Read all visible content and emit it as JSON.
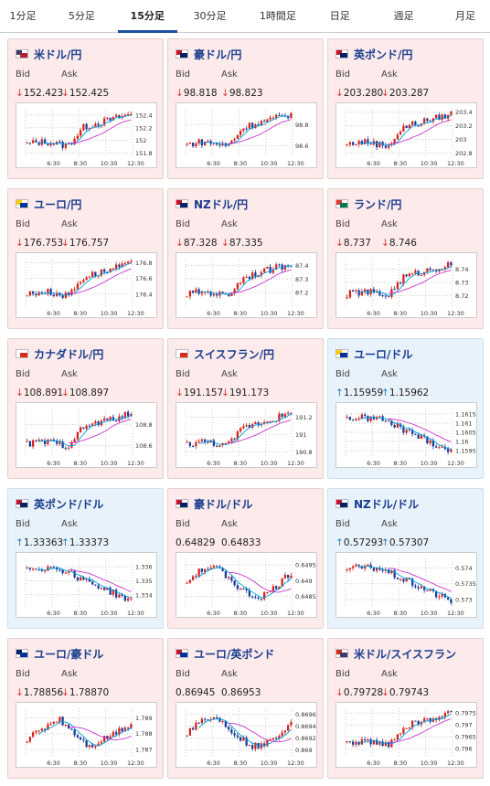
{
  "tabs": [
    {
      "label": "1分足",
      "active": false
    },
    {
      "label": "5分足",
      "active": false
    },
    {
      "label": "15分足",
      "active": true
    },
    {
      "label": "30分足",
      "active": false
    },
    {
      "label": "1時間足",
      "active": false
    },
    {
      "label": "日足",
      "active": false
    },
    {
      "label": "週足",
      "active": false
    },
    {
      "label": "月足",
      "active": false
    }
  ],
  "colors": {
    "accent": "#1a4fa0",
    "down_bg": "#fdeaea",
    "up_bg": "#e8f2fb",
    "rise": "#d9221a",
    "fall": "#1a3c9a",
    "ma_short": "#00a0e0",
    "ma_long": "#cc33cc"
  },
  "cards": [
    {
      "pair": "米ドル/円",
      "dir": "down",
      "bid": "152.423",
      "ask": "152.425",
      "flag": "us-flag-icon",
      "chart_data": {
        "type": "candlestick",
        "x_ticks": [
          "6:30",
          "8:30",
          "10:30",
          "12:30"
        ],
        "y_ticks": [
          "152.4",
          "152.2",
          "152",
          "151.8"
        ],
        "y_range": [
          151.75,
          152.5
        ],
        "shape": "rise"
      }
    },
    {
      "pair": "豪ドル/円",
      "dir": "down",
      "bid": "98.818",
      "ask": "98.823",
      "flag": "au-flag-icon",
      "chart_data": {
        "type": "candlestick",
        "x_ticks": [
          "6:30",
          "8:30",
          "10:30",
          "12:30"
        ],
        "y_ticks": [
          "98.8",
          "98.6"
        ],
        "y_range": [
          98.5,
          98.95
        ],
        "shape": "rise"
      }
    },
    {
      "pair": "英ポンド/円",
      "dir": "down",
      "bid": "203.280",
      "ask": "203.287",
      "flag": "uk-flag-icon",
      "chart_data": {
        "type": "candlestick",
        "x_ticks": [
          "6:30",
          "8:30",
          "10:30",
          "12:30"
        ],
        "y_ticks": [
          "203.4",
          "203.2",
          "203",
          "202.8"
        ],
        "y_range": [
          202.75,
          203.45
        ],
        "shape": "rise"
      }
    },
    {
      "pair": "ユーロ/円",
      "dir": "down",
      "bid": "176.753",
      "ask": "176.757",
      "flag": "eu-flag-icon",
      "chart_data": {
        "type": "candlestick",
        "x_ticks": [
          "6:30",
          "8:30",
          "10:30",
          "12:30"
        ],
        "y_ticks": [
          "176.8",
          "176.6",
          "176.4"
        ],
        "y_range": [
          176.25,
          176.85
        ],
        "shape": "rise"
      }
    },
    {
      "pair": "NZドル/円",
      "dir": "down",
      "bid": "87.328",
      "ask": "87.335",
      "flag": "nz-flag-icon",
      "chart_data": {
        "type": "candlestick",
        "x_ticks": [
          "6:30",
          "8:30",
          "10:30",
          "12:30"
        ],
        "y_ticks": [
          "87.4",
          "87.3",
          "87.2"
        ],
        "y_range": [
          87.1,
          87.45
        ],
        "shape": "rise"
      }
    },
    {
      "pair": "ランド/円",
      "dir": "down",
      "bid": "8.737",
      "ask": "8.746",
      "flag": "za-flag-icon",
      "chart_data": {
        "type": "candlestick",
        "x_ticks": [
          "6:30",
          "8:30",
          "10:30",
          "12:30"
        ],
        "y_ticks": [
          "8.74",
          "8.73",
          "8.72"
        ],
        "y_range": [
          8.712,
          8.748
        ],
        "shape": "rise"
      }
    },
    {
      "pair": "カナダドル/円",
      "dir": "down",
      "bid": "108.891",
      "ask": "108.897",
      "flag": "ca-flag-icon",
      "chart_data": {
        "type": "candlestick",
        "x_ticks": [
          "6:30",
          "8:30",
          "10:30",
          "12:30"
        ],
        "y_ticks": [
          "108.8",
          "108.6"
        ],
        "y_range": [
          108.5,
          108.95
        ],
        "shape": "rise"
      }
    },
    {
      "pair": "スイスフラン/円",
      "dir": "down",
      "bid": "191.157",
      "ask": "191.173",
      "flag": "ch-flag-icon",
      "chart_data": {
        "type": "candlestick",
        "x_ticks": [
          "6:30",
          "8:30",
          "10:30",
          "12:30"
        ],
        "y_ticks": [
          "191.2",
          "191",
          "190.8"
        ],
        "y_range": [
          190.75,
          191.3
        ],
        "shape": "rise"
      }
    },
    {
      "pair": "ユーロ/ドル",
      "dir": "up",
      "bid": "1.15959",
      "ask": "1.15962",
      "flag": "eu-flag-icon",
      "chart_data": {
        "type": "candlestick",
        "x_ticks": [
          "6:30",
          "8:30",
          "10:30",
          "12:30"
        ],
        "y_ticks": [
          "1.1615",
          "1.161",
          "1.1605",
          "1.16",
          "1.1595"
        ],
        "y_range": [
          1.1592,
          1.1618
        ],
        "shape": "fall"
      }
    },
    {
      "pair": "英ポンド/ドル",
      "dir": "up",
      "bid": "1.33363",
      "ask": "1.33373",
      "flag": "uk-flag-icon",
      "chart_data": {
        "type": "candlestick",
        "x_ticks": [
          "6:30",
          "8:30",
          "10:30",
          "12:30"
        ],
        "y_ticks": [
          "1.336",
          "1.335",
          "1.334"
        ],
        "y_range": [
          1.3332,
          1.3366
        ],
        "shape": "fall"
      }
    },
    {
      "pair": "豪ドル/ドル",
      "dir": "flat",
      "bid": "0.64829",
      "ask": "0.64833",
      "flag": "au-flag-icon",
      "chart_data": {
        "type": "candlestick",
        "x_ticks": [
          "6:30",
          "8:30",
          "10:30",
          "12:30"
        ],
        "y_ticks": [
          "0.6495",
          "0.649",
          "0.6485"
        ],
        "y_range": [
          0.6482,
          0.6497
        ],
        "shape": "wave"
      }
    },
    {
      "pair": "NZドル/ドル",
      "dir": "up",
      "bid": "0.57293",
      "ask": "0.57307",
      "flag": "nz-flag-icon",
      "chart_data": {
        "type": "candlestick",
        "x_ticks": [
          "6:30",
          "8:30",
          "10:30",
          "12:30"
        ],
        "y_ticks": [
          "0.574",
          "0.5735",
          "0.573"
        ],
        "y_range": [
          0.5728,
          0.5743
        ],
        "shape": "fall"
      }
    },
    {
      "pair": "ユーロ/豪ドル",
      "dir": "down",
      "bid": "1.78856",
      "ask": "1.78870",
      "flag": "eu-au-flag-icon",
      "chart_data": {
        "type": "candlestick",
        "x_ticks": [
          "6:30",
          "8:30",
          "10:30",
          "12:30"
        ],
        "y_ticks": [
          "1.789",
          "1.788",
          "1.787"
        ],
        "y_range": [
          1.7866,
          1.7896
        ],
        "shape": "hump"
      }
    },
    {
      "pair": "ユーロ/英ポンド",
      "dir": "flat",
      "bid": "0.86945",
      "ask": "0.86953",
      "flag": "eu-uk-flag-icon",
      "chart_data": {
        "type": "candlestick",
        "x_ticks": [
          "6:30",
          "8:30",
          "10:30",
          "12:30"
        ],
        "y_ticks": [
          "0.8696",
          "0.8694",
          "0.8692",
          "0.869"
        ],
        "y_range": [
          0.8689,
          0.8697
        ],
        "shape": "wave"
      }
    },
    {
      "pair": "米ドル/スイスフラン",
      "dir": "down",
      "bid": "0.79728",
      "ask": "0.79743",
      "flag": "us-ch-flag-icon",
      "chart_data": {
        "type": "candlestick",
        "x_ticks": [
          "6:30",
          "8:30",
          "10:30",
          "12:30"
        ],
        "y_ticks": [
          "0.7975",
          "0.797",
          "0.7965",
          "0.796"
        ],
        "y_range": [
          0.7957,
          0.7977
        ],
        "shape": "rise"
      }
    }
  ],
  "labels": {
    "bid": "Bid",
    "ask": "Ask"
  }
}
